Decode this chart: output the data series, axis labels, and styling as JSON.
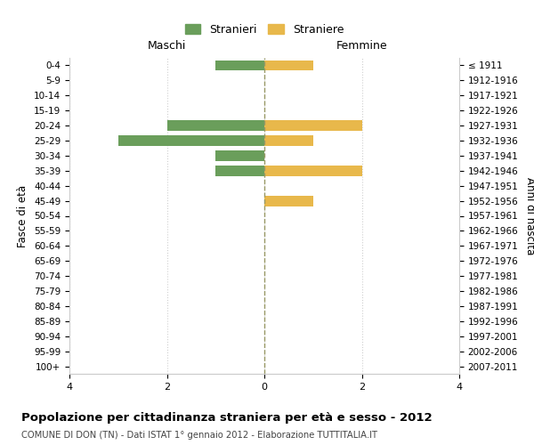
{
  "age_groups": [
    "0-4",
    "5-9",
    "10-14",
    "15-19",
    "20-24",
    "25-29",
    "30-34",
    "35-39",
    "40-44",
    "45-49",
    "50-54",
    "55-59",
    "60-64",
    "65-69",
    "70-74",
    "75-79",
    "80-84",
    "85-89",
    "90-94",
    "95-99",
    "100+"
  ],
  "birth_years": [
    "2007-2011",
    "2002-2006",
    "1997-2001",
    "1992-1996",
    "1987-1991",
    "1982-1986",
    "1977-1981",
    "1972-1976",
    "1967-1971",
    "1962-1966",
    "1957-1961",
    "1952-1956",
    "1947-1951",
    "1942-1946",
    "1937-1941",
    "1932-1936",
    "1927-1931",
    "1922-1926",
    "1917-1921",
    "1912-1916",
    "≤ 1911"
  ],
  "males": [
    -1,
    0,
    0,
    0,
    -2,
    -3,
    -1,
    -1,
    0,
    0,
    0,
    0,
    0,
    0,
    0,
    0,
    0,
    0,
    0,
    0,
    0
  ],
  "females": [
    1,
    0,
    0,
    0,
    2,
    1,
    0,
    2,
    0,
    1,
    0,
    0,
    0,
    0,
    0,
    0,
    0,
    0,
    0,
    0,
    0
  ],
  "male_color": "#6a9e5b",
  "female_color": "#e8b84b",
  "male_label": "Stranieri",
  "female_label": "Straniere",
  "xlabel_left": "Maschi",
  "xlabel_right": "Femmine",
  "ylabel_left": "Fasce di età",
  "ylabel_right": "Anni di nascita",
  "xlim": [
    -4,
    4
  ],
  "xticks": [
    -4,
    -2,
    0,
    2,
    4
  ],
  "xticklabels": [
    "4",
    "2",
    "0",
    "2",
    "4"
  ],
  "title": "Popolazione per cittadinanza straniera per età e sesso - 2012",
  "subtitle": "COMUNE DI DON (TN) - Dati ISTAT 1° gennaio 2012 - Elaborazione TUTTITALIA.IT",
  "background_color": "#ffffff",
  "grid_color": "#d0d0d0",
  "vline_color": "#999966"
}
